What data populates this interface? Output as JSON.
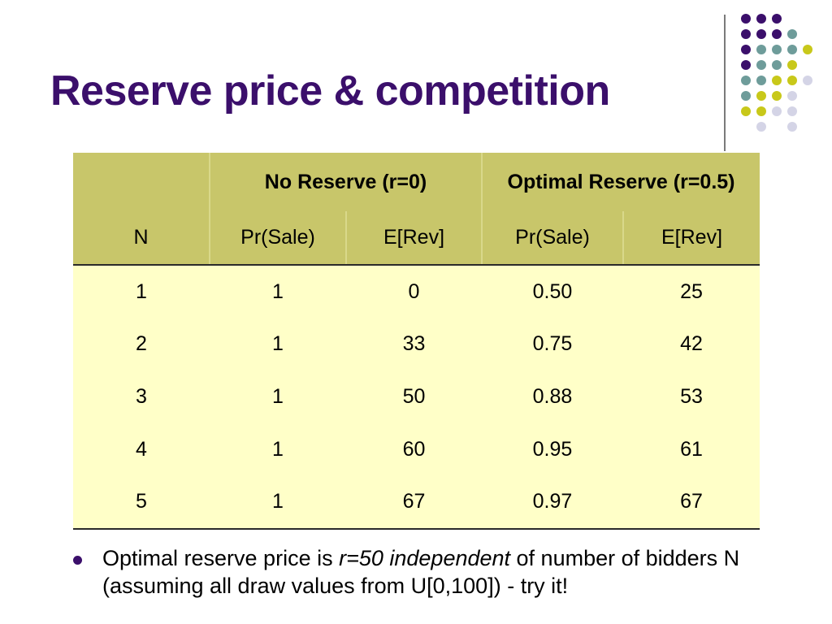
{
  "slide": {
    "title": "Reserve price & competition"
  },
  "table": {
    "group_headers": [
      "",
      "No Reserve (r=0)",
      "Optimal Reserve (r=0.5)"
    ],
    "columns": [
      "N",
      "Pr(Sale)",
      "E[Rev]",
      "Pr(Sale)",
      "E[Rev]"
    ],
    "rows": [
      [
        "1",
        "1",
        "0",
        "0.50",
        "25"
      ],
      [
        "2",
        "1",
        "33",
        "0.75",
        "42"
      ],
      [
        "3",
        "1",
        "50",
        "0.88",
        "53"
      ],
      [
        "4",
        "1",
        "60",
        "0.95",
        "61"
      ],
      [
        "5",
        "1",
        "67",
        "0.97",
        "67"
      ]
    ]
  },
  "bullet": {
    "pre": "Optimal reserve price is ",
    "emph": "r=50 independent",
    "post": " of number of bidders N (assuming all draw values from U[0,100]) - try it!"
  },
  "decor_colors": {
    "purple": "#3b0f6b",
    "teal": "#6e9c9a",
    "yellow": "#c8c81a",
    "lavender": "#d4d4e6"
  }
}
